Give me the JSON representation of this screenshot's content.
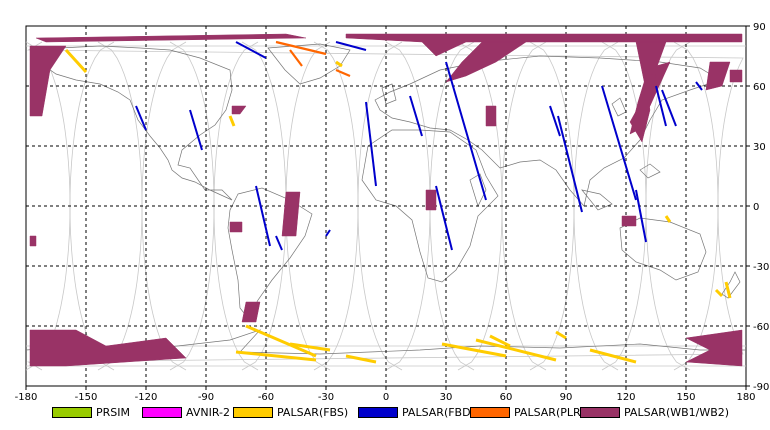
{
  "chart_data": {
    "type": "map",
    "title": "",
    "projection": "equirectangular",
    "xlim": [
      -180,
      180
    ],
    "ylim": [
      -90,
      90
    ],
    "x_ticks": [
      "-180",
      "-150",
      "-120",
      "-90",
      "-60",
      "-30",
      "0",
      "30",
      "60",
      "90",
      "120",
      "150",
      "180"
    ],
    "y_ticks": [
      "90",
      "60",
      "30",
      "0",
      "-30",
      "-60",
      "-90"
    ],
    "grid": true,
    "legend_position": "bottom",
    "legend": [
      {
        "name": "PRSIM",
        "color": "#99cc00"
      },
      {
        "name": "AVNIR-2",
        "color": "#ff00ff"
      },
      {
        "name": "PALSAR(FBS)",
        "color": "#ffcc00"
      },
      {
        "name": "PALSAR(FBD)",
        "color": "#0000cc"
      },
      {
        "name": "PALSAR(PLR)",
        "color": "#ff6600"
      },
      {
        "name": "PALSAR(WB1/WB2)",
        "color": "#993366"
      }
    ],
    "fbd_strips": [
      [
        [
          -125,
          50
        ],
        [
          -120,
          38
        ]
      ],
      [
        [
          -98,
          48
        ],
        [
          -92,
          28
        ]
      ],
      [
        [
          -65,
          10
        ],
        [
          -58,
          -20
        ]
      ],
      [
        [
          -55,
          -15
        ],
        [
          -52,
          -22
        ]
      ],
      [
        [
          -30,
          -15
        ],
        [
          -28,
          -12
        ]
      ],
      [
        [
          -10,
          52
        ],
        [
          -5,
          10
        ]
      ],
      [
        [
          12,
          55
        ],
        [
          18,
          35
        ]
      ],
      [
        [
          25,
          10
        ],
        [
          33,
          -22
        ]
      ],
      [
        [
          30,
          72
        ],
        [
          50,
          3
        ]
      ],
      [
        [
          82,
          50
        ],
        [
          87,
          35
        ]
      ],
      [
        [
          86,
          45
        ],
        [
          98,
          -3
        ]
      ],
      [
        [
          108,
          60
        ],
        [
          125,
          3
        ]
      ],
      [
        [
          125,
          8
        ],
        [
          130,
          -18
        ]
      ],
      [
        [
          135,
          60
        ],
        [
          140,
          40
        ]
      ],
      [
        [
          138,
          58
        ],
        [
          145,
          40
        ]
      ],
      [
        [
          155,
          62
        ],
        [
          158,
          58
        ]
      ],
      [
        [
          -75,
          82
        ],
        [
          -60,
          74
        ]
      ],
      [
        [
          -25,
          82
        ],
        [
          -10,
          78
        ]
      ]
    ],
    "fbs_strips": [
      [
        [
          -160,
          78
        ],
        [
          -150,
          67
        ]
      ],
      [
        [
          -70,
          -60
        ],
        [
          -35,
          -75
        ]
      ],
      [
        [
          -75,
          -73
        ],
        [
          -35,
          -77
        ]
      ],
      [
        [
          -48,
          -69
        ],
        [
          -28,
          -72
        ]
      ],
      [
        [
          -20,
          -75
        ],
        [
          -5,
          -78
        ]
      ],
      [
        [
          28,
          -69
        ],
        [
          60,
          -75
        ]
      ],
      [
        [
          45,
          -67
        ],
        [
          85,
          -77
        ]
      ],
      [
        [
          52,
          -65
        ],
        [
          62,
          -70
        ]
      ],
      [
        [
          85,
          -63
        ],
        [
          90,
          -66
        ]
      ],
      [
        [
          102,
          -72
        ],
        [
          125,
          -78
        ]
      ],
      [
        [
          170,
          -38
        ],
        [
          172,
          -46
        ]
      ],
      [
        [
          165,
          -42
        ],
        [
          168,
          -45
        ]
      ],
      [
        [
          -25,
          72
        ],
        [
          -22,
          70
        ]
      ],
      [
        [
          -78,
          45
        ],
        [
          -76,
          40
        ]
      ],
      [
        [
          140,
          -5
        ],
        [
          142,
          -8
        ]
      ]
    ],
    "plr_strips": [
      [
        [
          -55,
          82
        ],
        [
          -30,
          76
        ]
      ],
      [
        [
          -48,
          78
        ],
        [
          -42,
          70
        ]
      ],
      [
        [
          -25,
          68
        ],
        [
          -18,
          65
        ]
      ]
    ],
    "wb_regions": [
      [
        [
          -178,
          80
        ],
        [
          -160,
          80
        ],
        [
          -168,
          68
        ],
        [
          -172,
          45
        ],
        [
          -178,
          45
        ]
      ],
      [
        [
          -175,
          84
        ],
        [
          -50,
          86
        ],
        [
          -40,
          84
        ],
        [
          -170,
          82
        ]
      ],
      [
        [
          -20,
          86
        ],
        [
          178,
          86
        ],
        [
          178,
          82
        ],
        [
          40,
          82
        ],
        [
          25,
          75
        ],
        [
          18,
          82
        ],
        [
          -20,
          84
        ]
      ],
      [
        [
          48,
          82
        ],
        [
          70,
          82
        ],
        [
          55,
          72
        ],
        [
          40,
          65
        ],
        [
          30,
          62
        ],
        [
          38,
          72
        ]
      ],
      [
        [
          125,
          82
        ],
        [
          140,
          82
        ],
        [
          132,
          60
        ],
        [
          122,
          42
        ],
        [
          128,
          32
        ],
        [
          132,
          48
        ]
      ],
      [
        [
          135,
          70
        ],
        [
          142,
          72
        ],
        [
          132,
          50
        ],
        [
          128,
          54
        ]
      ],
      [
        [
          130,
          65
        ],
        [
          135,
          66
        ],
        [
          130,
          40
        ],
        [
          122,
          36
        ],
        [
          126,
          52
        ]
      ],
      [
        [
          50,
          50
        ],
        [
          55,
          50
        ],
        [
          55,
          40
        ],
        [
          50,
          40
        ]
      ],
      [
        [
          -77,
          50
        ],
        [
          -70,
          50
        ],
        [
          -73,
          46
        ],
        [
          -77,
          46
        ]
      ],
      [
        [
          162,
          72
        ],
        [
          172,
          72
        ],
        [
          168,
          60
        ],
        [
          160,
          58
        ]
      ],
      [
        [
          172,
          68
        ],
        [
          178,
          68
        ],
        [
          178,
          62
        ],
        [
          172,
          62
        ]
      ],
      [
        [
          -50,
          7
        ],
        [
          -43,
          7
        ],
        [
          -45,
          -15
        ],
        [
          -52,
          -15
        ]
      ],
      [
        [
          -78,
          -8
        ],
        [
          -72,
          -8
        ],
        [
          -72,
          -13
        ],
        [
          -78,
          -13
        ]
      ],
      [
        [
          20,
          8
        ],
        [
          25,
          8
        ],
        [
          25,
          -2
        ],
        [
          20,
          -2
        ]
      ],
      [
        [
          118,
          -5
        ],
        [
          125,
          -5
        ],
        [
          125,
          -10
        ],
        [
          118,
          -10
        ]
      ],
      [
        [
          -70,
          -48
        ],
        [
          -63,
          -48
        ],
        [
          -65,
          -58
        ],
        [
          -72,
          -58
        ]
      ],
      [
        [
          -178,
          -62
        ],
        [
          -155,
          -62
        ],
        [
          -140,
          -70
        ],
        [
          -110,
          -66
        ],
        [
          -100,
          -76
        ],
        [
          -160,
          -80
        ],
        [
          -178,
          -80
        ]
      ],
      [
        [
          150,
          -66
        ],
        [
          178,
          -62
        ],
        [
          178,
          -80
        ],
        [
          150,
          -78
        ],
        [
          162,
          -72
        ]
      ],
      [
        [
          -178,
          -15
        ],
        [
          -175,
          -15
        ],
        [
          -175,
          -20
        ],
        [
          -178,
          -20
        ]
      ]
    ]
  }
}
